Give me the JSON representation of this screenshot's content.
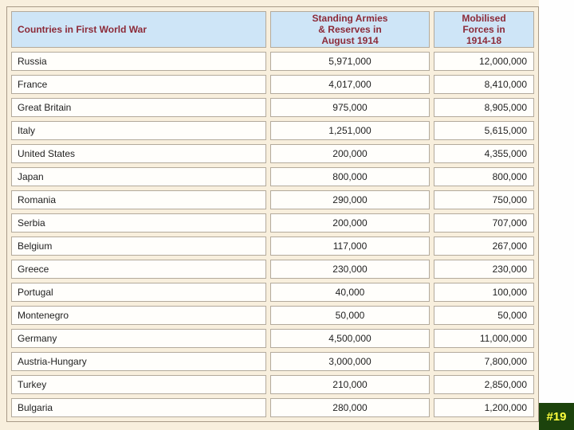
{
  "slide": {
    "background_color": "#f8efdd",
    "side_panel_color": "#fefefe"
  },
  "badge": {
    "label": "#19",
    "background_color": "#1c430c",
    "text_color": "#feff3c"
  },
  "table": {
    "header": {
      "country_col": "Countries in First World War",
      "standing_col": "Standing Armies\n& Reserves in\nAugust 1914",
      "mobilised_col": "Mobilised\nForces in\n1914-18",
      "background_color": "#cee5f7",
      "text_color": "#8c2a38"
    },
    "rows": [
      {
        "country": "Russia",
        "standing_armies": "5,971,000",
        "mobilised_forces": "12,000,000"
      },
      {
        "country": "France",
        "standing_armies": "4,017,000",
        "mobilised_forces": "8,410,000"
      },
      {
        "country": "Great Britain",
        "standing_armies": "975,000",
        "mobilised_forces": "8,905,000"
      },
      {
        "country": "Italy",
        "standing_armies": "1,251,000",
        "mobilised_forces": "5,615,000"
      },
      {
        "country": "United States",
        "standing_armies": "200,000",
        "mobilised_forces": "4,355,000"
      },
      {
        "country": "Japan",
        "standing_armies": "800,000",
        "mobilised_forces": "800,000"
      },
      {
        "country": "Romania",
        "standing_armies": "290,000",
        "mobilised_forces": "750,000"
      },
      {
        "country": "Serbia",
        "standing_armies": "200,000",
        "mobilised_forces": "707,000"
      },
      {
        "country": "Belgium",
        "standing_armies": "117,000",
        "mobilised_forces": "267,000"
      },
      {
        "country": "Greece",
        "standing_armies": "230,000",
        "mobilised_forces": "230,000"
      },
      {
        "country": "Portugal",
        "standing_armies": "40,000",
        "mobilised_forces": "100,000"
      },
      {
        "country": "Montenegro",
        "standing_armies": "50,000",
        "mobilised_forces": "50,000"
      },
      {
        "country": "Germany",
        "standing_armies": "4,500,000",
        "mobilised_forces": "11,000,000"
      },
      {
        "country": "Austria-Hungary",
        "standing_armies": "3,000,000",
        "mobilised_forces": "7,800,000"
      },
      {
        "country": "Turkey",
        "standing_armies": "210,000",
        "mobilised_forces": "2,850,000"
      },
      {
        "country": "Bulgaria",
        "standing_armies": "280,000",
        "mobilised_forces": "1,200,000"
      }
    ]
  }
}
